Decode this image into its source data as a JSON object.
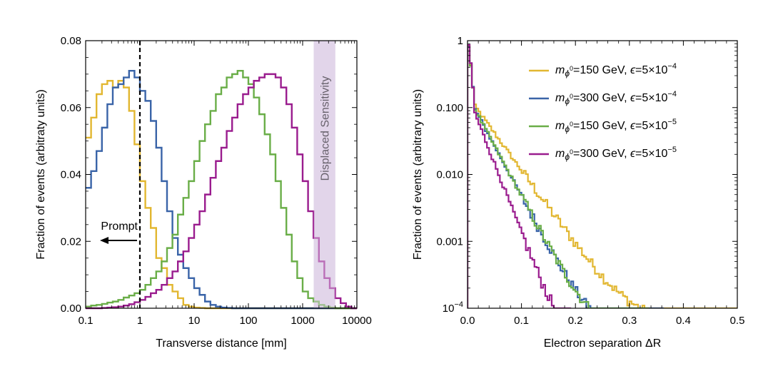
{
  "colors": {
    "gold": "#E2B731",
    "blue": "#3A64A8",
    "green": "#6AAE48",
    "purple": "#9A1C8E",
    "band": "#E2D5EA",
    "prompt_line": "#000000"
  },
  "chart_data": [
    {
      "type": "step-histogram",
      "title": "",
      "xlabel": "Transverse distance [mm]",
      "ylabel": "Fraction of events (arbitraty units)",
      "xscale": "log",
      "xlim": [
        0.1,
        10000
      ],
      "ylim": [
        0,
        0.08
      ],
      "x_ticks": [
        "0.1",
        "1",
        "10",
        "100",
        "1000",
        "10000"
      ],
      "y_ticks": [
        "0.00",
        "0.02",
        "0.04",
        "0.06",
        "0.08"
      ],
      "bins_per_decade": 10,
      "bin_start": 0.1,
      "series": [
        {
          "color_key": "gold",
          "values": [
            0.051,
            0.057,
            0.064,
            0.067,
            0.068,
            0.066,
            0.068,
            0.066,
            0.059,
            0.049,
            0.038,
            0.03,
            0.024,
            0.015,
            0.012,
            0.007,
            0.005,
            0.003,
            0.001,
            0.0005,
            0.0002,
            0.0001,
            0,
            0,
            0,
            0,
            0,
            0,
            0,
            0,
            0,
            0,
            0,
            0,
            0,
            0,
            0,
            0,
            0,
            0,
            0,
            0,
            0,
            0,
            0,
            0,
            0,
            0,
            0,
            0
          ]
        },
        {
          "color_key": "blue",
          "values": [
            0.036,
            0.041,
            0.047,
            0.054,
            0.061,
            0.066,
            0.067,
            0.069,
            0.071,
            0.069,
            0.065,
            0.062,
            0.056,
            0.048,
            0.038,
            0.029,
            0.021,
            0.016,
            0.012,
            0.009,
            0.006,
            0.004,
            0.002,
            0.001,
            0.0005,
            0.0002,
            0.0001,
            0,
            0,
            0,
            0,
            0,
            0,
            0,
            0,
            0,
            0,
            0,
            0,
            0,
            0,
            0,
            0,
            0,
            0,
            0,
            0,
            0,
            0,
            0
          ]
        },
        {
          "color_key": "green",
          "values": [
            0.0005,
            0.0008,
            0.001,
            0.0013,
            0.0017,
            0.002,
            0.0025,
            0.0032,
            0.0038,
            0.0045,
            0.0055,
            0.007,
            0.009,
            0.011,
            0.014,
            0.018,
            0.022,
            0.028,
            0.033,
            0.038,
            0.044,
            0.05,
            0.055,
            0.059,
            0.064,
            0.066,
            0.069,
            0.07,
            0.071,
            0.069,
            0.067,
            0.063,
            0.058,
            0.052,
            0.046,
            0.038,
            0.03,
            0.022,
            0.014,
            0.009,
            0.005,
            0.003,
            0.002,
            0.001,
            0.0005,
            0.0002,
            0,
            0,
            0,
            0
          ]
        },
        {
          "color_key": "purple",
          "values": [
            0,
            0,
            0,
            0.0001,
            0.0002,
            0.0003,
            0.0005,
            0.0008,
            0.0012,
            0.0018,
            0.0025,
            0.0034,
            0.0045,
            0.0055,
            0.007,
            0.009,
            0.011,
            0.014,
            0.017,
            0.021,
            0.025,
            0.029,
            0.034,
            0.039,
            0.044,
            0.048,
            0.053,
            0.057,
            0.061,
            0.064,
            0.066,
            0.068,
            0.069,
            0.07,
            0.07,
            0.069,
            0.066,
            0.061,
            0.054,
            0.046,
            0.038,
            0.029,
            0.021,
            0.014,
            0.009,
            0.006,
            0.003,
            0.0015,
            0.0005,
            0
          ]
        }
      ],
      "prompt_x": 1,
      "prompt_label": "Prompt",
      "band_x": [
        1600,
        4000
      ],
      "band_label": "Displaced Sensitivity"
    },
    {
      "type": "step-histogram",
      "title": "",
      "xlabel": "Electron separation ΔR",
      "ylabel": "Fraction of events (arbitrary units)",
      "xlim": [
        0,
        0.5
      ],
      "yscale": "log",
      "ylim": [
        0.0001,
        1
      ],
      "x_ticks": [
        "0.0",
        "0.1",
        "0.2",
        "0.3",
        "0.4",
        "0.5"
      ],
      "y_ticks": [
        "10",
        "0.001",
        "0.010",
        "0.100",
        "1"
      ],
      "y_tick_sup": "−4",
      "legend_position": "top-right",
      "bin_width": 0.004,
      "series": [
        {
          "color_key": "gold",
          "name": "=150 GeV, ",
          "eps": "=5×10",
          "exp": "−4",
          "end": 0.5,
          "base": 0.11,
          "hl": 0.027,
          "floor": 6e-05,
          "noise": 0.35
        },
        {
          "color_key": "blue",
          "name": "=300 GeV, ",
          "eps": "=5×10",
          "exp": "−4",
          "end": 0.362,
          "base": 0.1,
          "hl": 0.02,
          "floor": 4e-05,
          "noise": 0.35
        },
        {
          "color_key": "green",
          "name": "=150 GeV, ",
          "eps": "=5×10",
          "exp": "−5",
          "end": 0.334,
          "base": 0.1,
          "hl": 0.02,
          "floor": 4e-05,
          "noise": 0.35
        },
        {
          "color_key": "purple",
          "name": "=300 GeV, ",
          "eps": "=5×10",
          "exp": "−5",
          "end": 0.19,
          "base": 0.09,
          "hl": 0.0145,
          "floor": 3e-05,
          "noise": 0.4
        }
      ],
      "legend_m": "m",
      "legend_sub": "ϕ",
      "legend_sub_sup": "0",
      "legend_eps": "ϵ"
    }
  ]
}
